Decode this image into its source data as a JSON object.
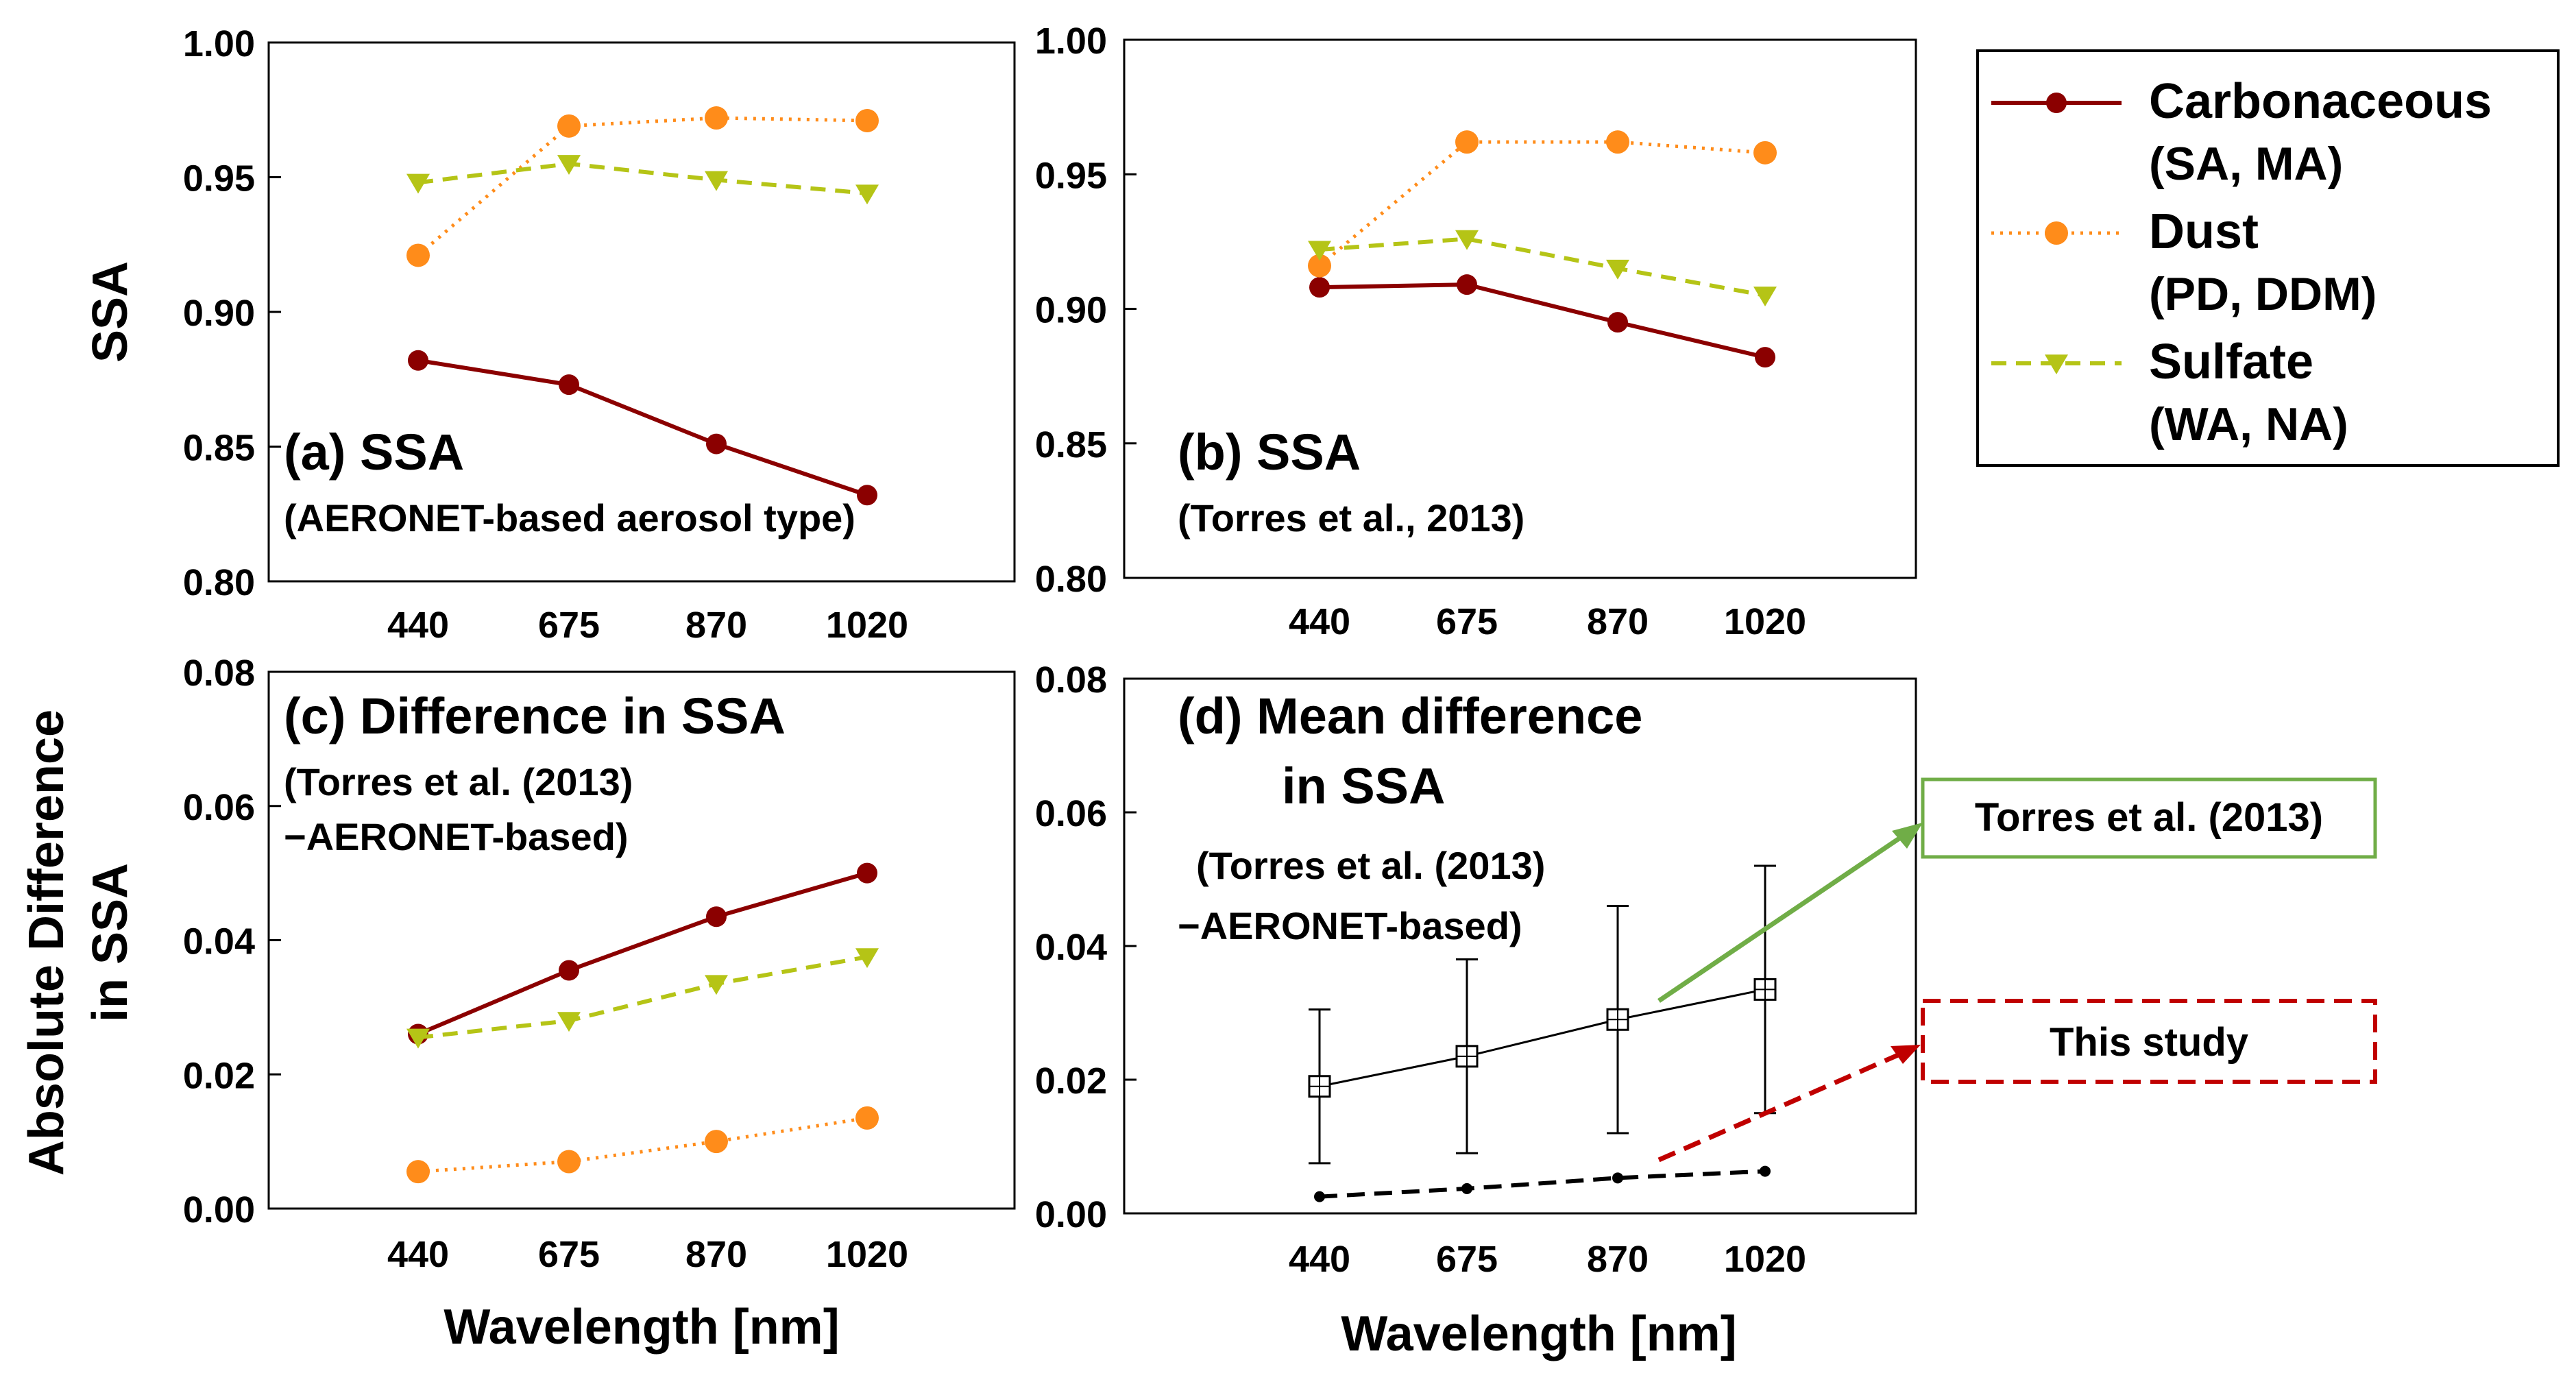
{
  "colors": {
    "carbonaceous": "#8b0000",
    "dust": "#ff8c1a",
    "sulfate": "#b5c416",
    "torres_box": "#70ad47",
    "this_study": "#c00000"
  },
  "legend": {
    "entries": [
      {
        "series": "carbonaceous",
        "line1": "Carbonaceous",
        "line2": "(SA, MA)"
      },
      {
        "series": "dust",
        "line1": "Dust",
        "line2": "(PD, DDM)"
      },
      {
        "series": "sulfate",
        "line1": "Sulfate",
        "line2": "(WA, NA)"
      }
    ]
  },
  "labels": {
    "ssa_ylabel": "SSA",
    "diff_ylabel_1": "Absolute Difference",
    "diff_ylabel_2": "in SSA",
    "xlabel": "Wavelength [nm]",
    "torres_label": "Torres et al. (2013)",
    "this_study_label": "This study"
  },
  "chart_data": [
    {
      "id": "a",
      "type": "line",
      "title": "(a)  SSA",
      "subtitle": [
        "(AERONET-based  aerosol type)"
      ],
      "xlabel": "",
      "ylabel": "SSA",
      "categories": [
        "440",
        "675",
        "870",
        "1020"
      ],
      "ylim": [
        0.8,
        1.0
      ],
      "yticks": [
        "0.80",
        "0.85",
        "0.90",
        "0.95",
        "1.00"
      ],
      "series": [
        {
          "name": "Carbonaceous",
          "key": "carbonaceous",
          "values": [
            0.882,
            0.873,
            0.851,
            0.832
          ]
        },
        {
          "name": "Dust",
          "key": "dust",
          "values": [
            0.921,
            0.969,
            0.972,
            0.971
          ]
        },
        {
          "name": "Sulfate",
          "key": "sulfate",
          "values": [
            0.948,
            0.955,
            0.949,
            0.944
          ]
        }
      ]
    },
    {
      "id": "b",
      "type": "line",
      "title": "(b) SSA",
      "subtitle": [
        "(Torres et al., 2013)"
      ],
      "xlabel": "",
      "ylabel": "",
      "categories": [
        "440",
        "675",
        "870",
        "1020"
      ],
      "ylim": [
        0.8,
        1.0
      ],
      "yticks": [
        "0.80",
        "0.85",
        "0.90",
        "0.95",
        "1.00"
      ],
      "series": [
        {
          "name": "Carbonaceous",
          "key": "carbonaceous",
          "values": [
            0.908,
            0.909,
            0.895,
            0.882
          ]
        },
        {
          "name": "Dust",
          "key": "dust",
          "values": [
            0.916,
            0.962,
            0.962,
            0.958
          ]
        },
        {
          "name": "Sulfate",
          "key": "sulfate",
          "values": [
            0.922,
            0.926,
            0.915,
            0.905
          ]
        }
      ]
    },
    {
      "id": "c",
      "type": "line",
      "title": "(c) Difference in SSA",
      "subtitle": [
        "(Torres et al. (2013)",
        "−AERONET-based)"
      ],
      "xlabel": "Wavelength [nm]",
      "ylabel": "Absolute Difference in SSA",
      "categories": [
        "440",
        "675",
        "870",
        "1020"
      ],
      "ylim": [
        0.0,
        0.08
      ],
      "yticks": [
        "0.00",
        "0.02",
        "0.04",
        "0.06",
        "0.08"
      ],
      "series": [
        {
          "name": "Carbonaceous",
          "key": "carbonaceous",
          "values": [
            0.026,
            0.0355,
            0.0435,
            0.05
          ]
        },
        {
          "name": "Dust",
          "key": "dust",
          "values": [
            0.0055,
            0.007,
            0.01,
            0.0135
          ]
        },
        {
          "name": "Sulfate",
          "key": "sulfate",
          "values": [
            0.0255,
            0.028,
            0.0335,
            0.0375
          ]
        }
      ]
    },
    {
      "id": "d",
      "type": "line",
      "title": "(d) Mean difference",
      "title2": "in SSA",
      "subtitle": [
        "(Torres et al. (2013)",
        "−AERONET-based)"
      ],
      "xlabel": "Wavelength [nm]",
      "ylabel": "",
      "categories": [
        "440",
        "675",
        "870",
        "1020"
      ],
      "ylim": [
        0.0,
        0.08
      ],
      "yticks": [
        "0.00",
        "0.02",
        "0.04",
        "0.06",
        "0.08"
      ],
      "series": [
        {
          "name": "Torres et al. (2013)",
          "key": "torres",
          "values": [
            0.019,
            0.0235,
            0.029,
            0.0335
          ],
          "err_low": [
            0.0075,
            0.009,
            0.012,
            0.015
          ],
          "err_high": [
            0.0305,
            0.038,
            0.046,
            0.052
          ]
        },
        {
          "name": "This study",
          "key": "this_study",
          "values": [
            0.0025,
            0.0037,
            0.0053,
            0.0063
          ]
        }
      ]
    }
  ]
}
